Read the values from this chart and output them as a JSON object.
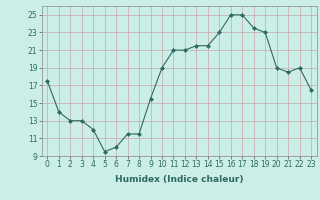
{
  "x": [
    0,
    1,
    2,
    3,
    4,
    5,
    6,
    7,
    8,
    9,
    10,
    11,
    12,
    13,
    14,
    15,
    16,
    17,
    18,
    19,
    20,
    21,
    22,
    23
  ],
  "y": [
    17.5,
    14.0,
    13.0,
    13.0,
    12.0,
    9.5,
    10.0,
    11.5,
    11.5,
    15.5,
    19.0,
    21.0,
    21.0,
    21.5,
    21.5,
    23.0,
    25.0,
    25.0,
    23.5,
    23.0,
    19.0,
    18.5,
    19.0,
    16.5
  ],
  "line_color": "#2e6b5e",
  "marker": "D",
  "marker_size": 2,
  "bg_color": "#cceee8",
  "grid_color_major": "#c8a8a8",
  "grid_color_minor": "#ddc8c8",
  "xlabel": "Humidex (Indice chaleur)",
  "ylim": [
    9,
    26
  ],
  "xlim": [
    -0.5,
    23.5
  ],
  "yticks": [
    9,
    11,
    13,
    15,
    17,
    19,
    21,
    23,
    25
  ],
  "xticks": [
    0,
    1,
    2,
    3,
    4,
    5,
    6,
    7,
    8,
    9,
    10,
    11,
    12,
    13,
    14,
    15,
    16,
    17,
    18,
    19,
    20,
    21,
    22,
    23
  ],
  "tick_fontsize": 5.5,
  "label_fontsize": 6.5
}
